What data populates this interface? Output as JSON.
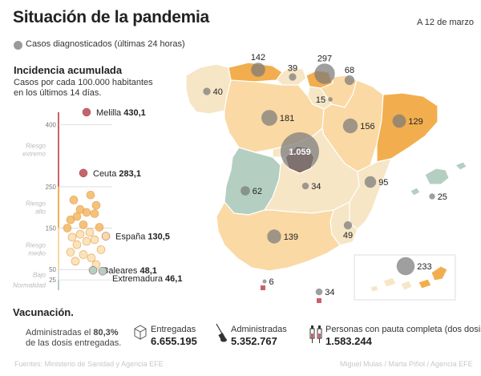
{
  "title": "Situación de la pandemia",
  "date": "A 12 de marzo",
  "legend": {
    "label": "Casos diagnosticados (últimas 24 horas)",
    "color": "#9a9a9a"
  },
  "incidence": {
    "title": "Incidencia acumulada",
    "subtitle_line1": "Casos por cada 100.000 habitantes",
    "subtitle_line2": "en los últimos 14 días."
  },
  "vaccination": {
    "title": "Vacunación.",
    "desc_prefix": "Administradas el ",
    "desc_pct": "80,3%",
    "desc_line2": "de las dosis entregadas.",
    "entregadas_label": "Entregadas",
    "entregadas_value": "6.655.195",
    "administradas_label": "Administradas",
    "administradas_value": "5.352.767",
    "pauta_label": "Personas con pauta completa (dos dosis)",
    "pauta_value": "1.583.244",
    "icons": [
      "box-icon",
      "syringe-icon",
      "double-syringe-icon"
    ]
  },
  "footer": {
    "left": "Fuentes: Ministerio de Sanidad y Agencia EFE",
    "right": "Miguel Mulas / Marta Piñol / Agencia EFE"
  },
  "colors": {
    "low": "#f6e6c6",
    "medium": "#fad9a4",
    "high": "#f2ae4e",
    "extreme": "#8b5a57",
    "bubble": "#7a7a7a",
    "melilla": "#c9616b",
    "extremadura": "#b4cfc1"
  },
  "chart_data": [
    {
      "type": "scatter",
      "title": "Incidencia acumulada",
      "yticks": [
        "400",
        "250",
        "150",
        "50",
        "25"
      ],
      "ylim": [
        0,
        430
      ],
      "zones": [
        {
          "name": "Riesgo extremo",
          "from": 250,
          "to": 430
        },
        {
          "name": "Riesgo alto",
          "from": 150,
          "to": 250
        },
        {
          "name": "Riesgo medio",
          "from": 50,
          "to": 150
        },
        {
          "name": "Bajo",
          "from": 25,
          "to": 50
        },
        {
          "name": "Normalidad",
          "from": 0,
          "to": 25
        }
      ],
      "labeled_points": [
        {
          "name": "Melilla",
          "value": 430.1,
          "value_label": "430,1"
        },
        {
          "name": "Ceuta",
          "value": 283.1,
          "value_label": "283,1"
        },
        {
          "name": "España",
          "value": 130.5,
          "value_label": "130,5"
        },
        {
          "name": "Baleares",
          "value": 48.1,
          "value_label": "48,1"
        },
        {
          "name": "Extremadura",
          "value": 46.1,
          "value_label": "46,1"
        }
      ],
      "unlabeled_values": [
        230,
        218,
        205,
        195,
        188,
        185,
        178,
        170,
        158,
        152,
        150,
        140,
        135,
        128,
        122,
        118,
        110,
        98,
        92,
        86,
        78,
        70,
        62
      ]
    },
    {
      "type": "bubble-map",
      "title": "Casos diagnosticados (últimas 24 horas)",
      "regions": [
        {
          "name": "Galicia",
          "value": 40,
          "label": "40"
        },
        {
          "name": "Asturias",
          "value": 142,
          "label": "142"
        },
        {
          "name": "Cantabria",
          "value": 39,
          "label": "39"
        },
        {
          "name": "País Vasco",
          "value": 297,
          "label": "297"
        },
        {
          "name": "Navarra",
          "value": 68,
          "label": "68"
        },
        {
          "name": "La Rioja",
          "value": 15,
          "label": "15"
        },
        {
          "name": "Castilla y León",
          "value": 181,
          "label": "181"
        },
        {
          "name": "Aragón",
          "value": 156,
          "label": "156"
        },
        {
          "name": "Cataluña",
          "value": 129,
          "label": "129"
        },
        {
          "name": "Madrid",
          "value": 1059,
          "label": "1.059"
        },
        {
          "name": "Extremadura",
          "value": 62,
          "label": "62"
        },
        {
          "name": "Castilla-La Mancha",
          "value": 34,
          "label": "34"
        },
        {
          "name": "Comunidad Valenciana",
          "value": 95,
          "label": "95"
        },
        {
          "name": "Baleares",
          "value": 25,
          "label": "25"
        },
        {
          "name": "Andalucía",
          "value": 139,
          "label": "139"
        },
        {
          "name": "Murcia",
          "value": 49,
          "label": "49"
        },
        {
          "name": "Canarias",
          "value": 233,
          "label": "233"
        },
        {
          "name": "Ceuta",
          "value": 6,
          "label": "6"
        },
        {
          "name": "Melilla",
          "value": 34,
          "label": "34"
        }
      ]
    }
  ]
}
